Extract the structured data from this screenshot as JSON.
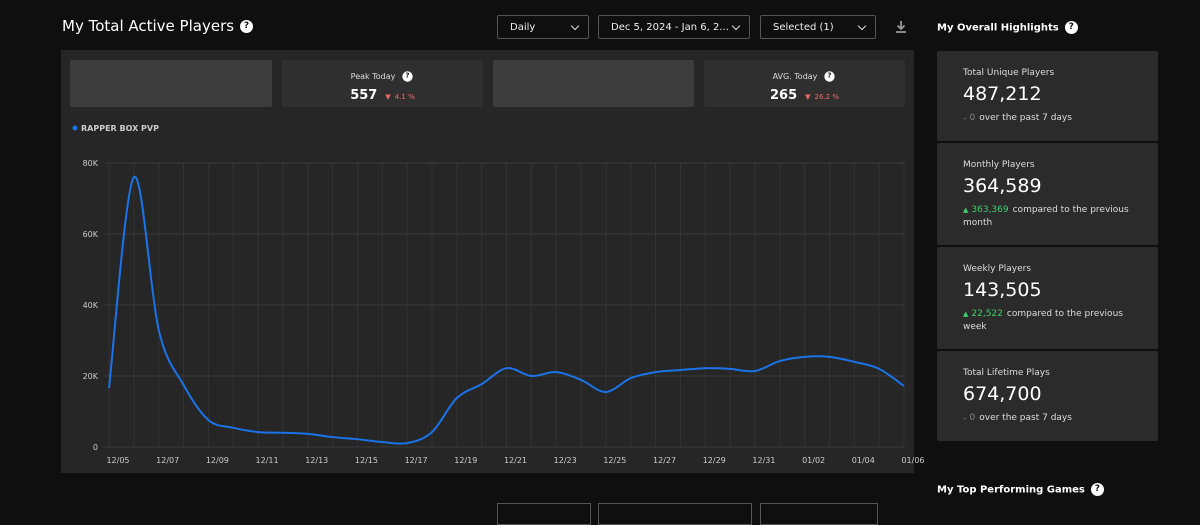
{
  "header": {
    "title": "My Total Active Players",
    "interval": "Daily",
    "date_range": "Dec 5, 2024  - Jan 6, 2...",
    "selection": "Selected (1)"
  },
  "stat_cards": [
    {
      "label": "Peak Today",
      "value": "557",
      "change": "4.1 %"
    },
    {
      "label": "AVG. Today",
      "value": "265",
      "change": "26.2 %"
    }
  ],
  "highlights": {
    "title": "My Overall Highlights",
    "cards": [
      {
        "label": "Total Unique Players",
        "value": "487,212",
        "change": "0",
        "trend": "flat",
        "note": "over the past 7 days"
      },
      {
        "label": "Monthly Players",
        "value": "364,589",
        "change": "363,369",
        "trend": "up",
        "note": "compared to the previous month"
      },
      {
        "label": "Weekly Players",
        "value": "143,505",
        "change": "22,522",
        "trend": "up",
        "note": "compared to the previous week"
      },
      {
        "label": "Total Lifetime Plays",
        "value": "674,700",
        "change": "0",
        "trend": "flat",
        "note": "over the past 7 days"
      }
    ]
  },
  "top_games": {
    "title": "My Top Performing Games"
  },
  "chart_data": {
    "type": "line",
    "categories": [
      "12/05",
      null,
      "12/07",
      null,
      "12/09",
      null,
      "12/11",
      null,
      "12/13",
      null,
      "12/15",
      null,
      "12/17",
      null,
      "12/19",
      null,
      "12/21",
      null,
      "12/23",
      null,
      "12/25",
      null,
      "12/27",
      null,
      "12/29",
      null,
      "12/31",
      null,
      "01/02",
      null,
      "01/04",
      null,
      "01/06"
    ],
    "series": [
      {
        "name": "RAPPER BOX PVP",
        "color": "#1a73e8",
        "values": [
          16600,
          76000,
          33000,
          17500,
          7600,
          5400,
          4200,
          4000,
          3700,
          2800,
          2200,
          1400,
          1100,
          4200,
          13800,
          17700,
          22200,
          20000,
          21100,
          18900,
          15500,
          19400,
          21100,
          21700,
          22200,
          22000,
          21400,
          24200,
          25400,
          25400,
          24000,
          22000,
          17200
        ]
      }
    ],
    "ylim": [
      0,
      80000
    ],
    "yticks": [
      0,
      {
        "value": 20000,
        "label": "20K"
      },
      {
        "value": 40000,
        "label": "40K"
      },
      {
        "value": 60000,
        "label": "60K"
      },
      {
        "value": 80000,
        "label": "80K"
      }
    ],
    "grid": true
  }
}
